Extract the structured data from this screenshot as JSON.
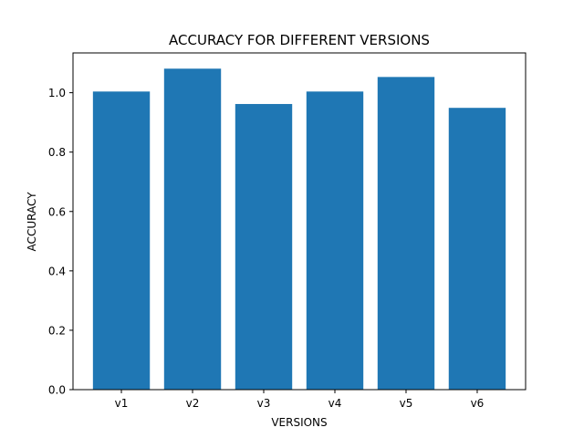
{
  "chart_data": {
    "type": "bar",
    "title": "ACCURACY FOR DIFFERENT VERSIONS",
    "xlabel": "VERSIONS",
    "ylabel": "ACCURACY",
    "categories": [
      "v1",
      "v2",
      "v3",
      "v4",
      "v5",
      "v6"
    ],
    "values": [
      1.004,
      1.081,
      0.962,
      1.004,
      1.053,
      0.949
    ],
    "ylim": [
      0,
      1.134
    ],
    "yticks": [
      0.0,
      0.2,
      0.4,
      0.6,
      0.8,
      1.0
    ],
    "ytick_labels": [
      "0.0",
      "0.2",
      "0.4",
      "0.6",
      "0.8",
      "1.0"
    ],
    "grid": false,
    "bar_color": "#1f77b4"
  }
}
